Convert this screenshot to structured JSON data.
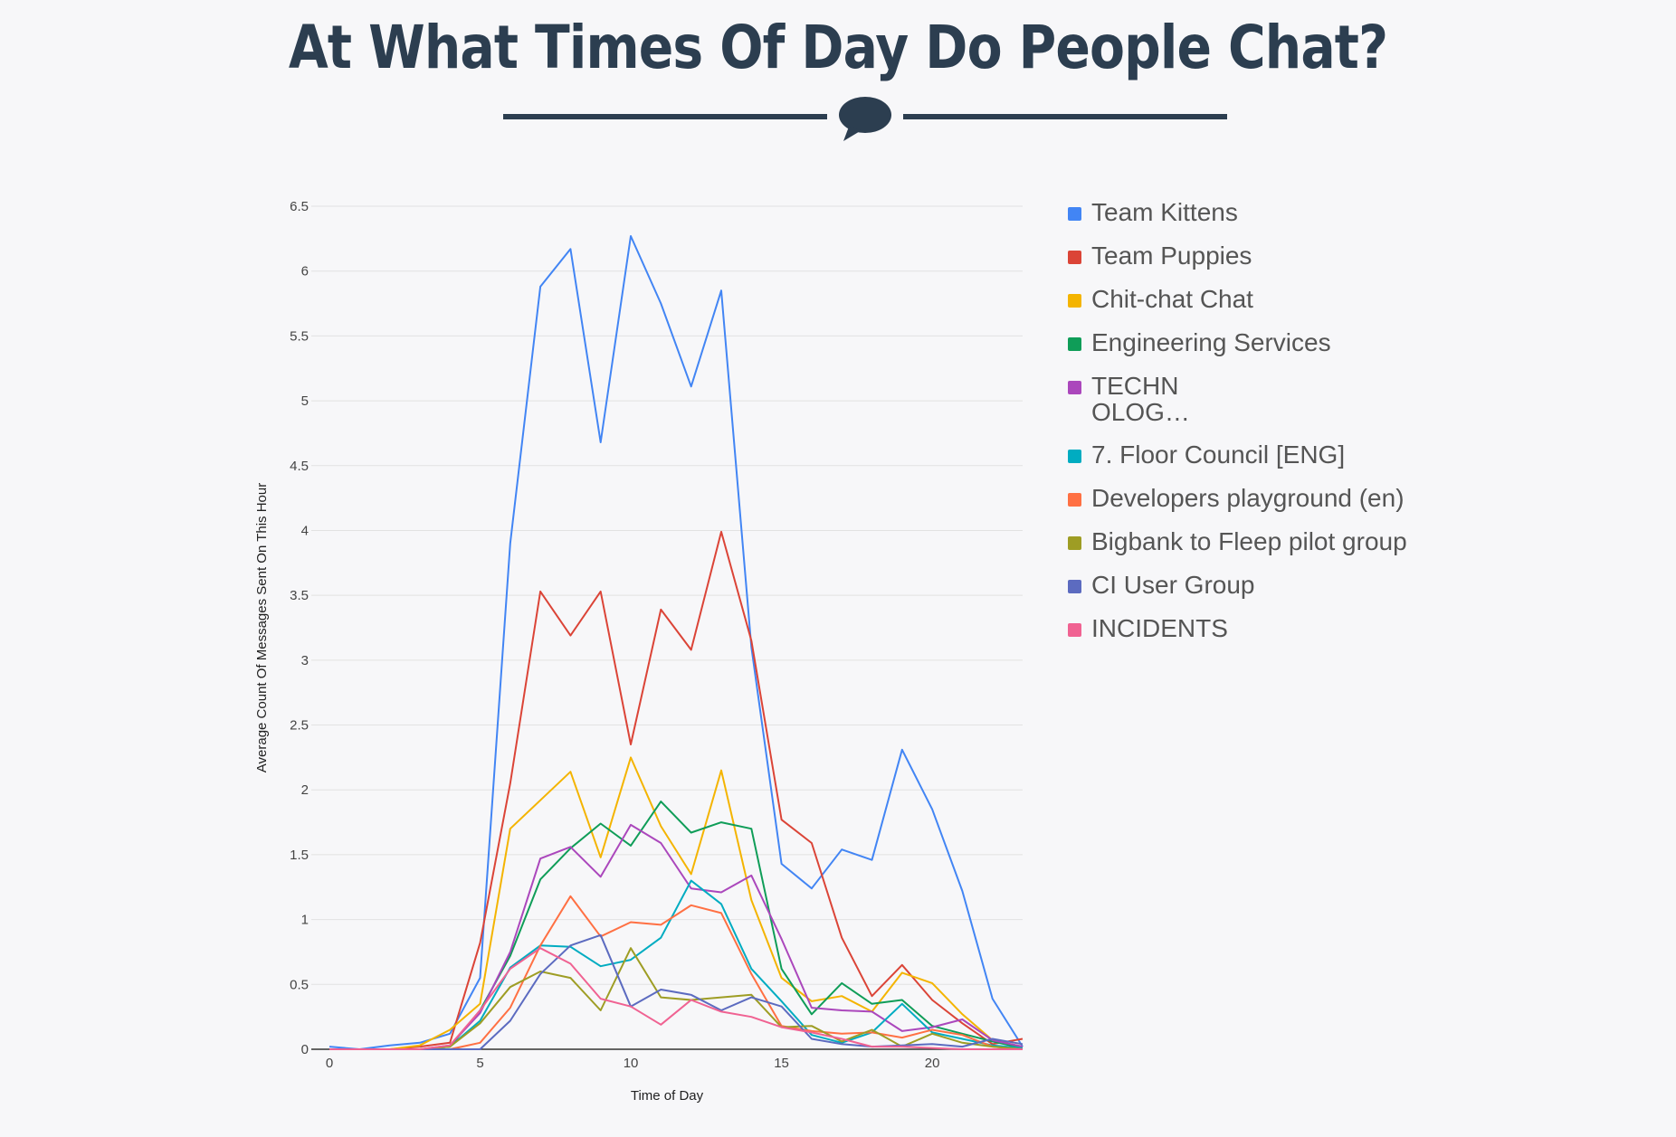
{
  "page": {
    "title": "At What Times Of Day Do People Chat?"
  },
  "chart_data": {
    "type": "line",
    "xlabel": "Time of Day",
    "ylabel": "Average Count Of Messages Sent On This Hour",
    "xlim": [
      0,
      23
    ],
    "ylim": [
      0,
      6.5
    ],
    "x_ticks": [
      0,
      5,
      10,
      15,
      20
    ],
    "y_ticks": [
      0,
      0.5,
      1,
      1.5,
      2,
      2.5,
      3,
      3.5,
      4,
      4.5,
      5,
      5.5,
      6,
      6.5
    ],
    "grid": true,
    "legend_position": "right",
    "x": [
      0,
      1,
      2,
      3,
      4,
      5,
      6,
      7,
      8,
      9,
      10,
      11,
      12,
      13,
      14,
      15,
      16,
      17,
      18,
      19,
      20,
      21,
      22,
      23
    ],
    "series": [
      {
        "name": "Team Kittens",
        "color": "#4285f4",
        "values": [
          0.02,
          0.0,
          0.03,
          0.05,
          0.12,
          0.55,
          3.9,
          5.88,
          6.17,
          4.68,
          6.27,
          5.75,
          5.11,
          5.85,
          3.1,
          1.43,
          1.24,
          1.54,
          1.46,
          2.31,
          1.85,
          1.22,
          0.39,
          0.02
        ]
      },
      {
        "name": "Team Puppies",
        "color": "#db4437",
        "values": [
          0.0,
          0.0,
          0.0,
          0.02,
          0.05,
          0.82,
          2.05,
          3.53,
          3.19,
          3.53,
          2.35,
          3.39,
          3.08,
          3.99,
          3.15,
          1.77,
          1.59,
          0.86,
          0.41,
          0.65,
          0.38,
          0.2,
          0.04,
          0.08
        ]
      },
      {
        "name": "Chit-chat Chat",
        "color": "#f4b400",
        "values": [
          0.0,
          0.0,
          0.0,
          0.03,
          0.15,
          0.35,
          1.7,
          1.92,
          2.14,
          1.48,
          2.25,
          1.72,
          1.35,
          2.15,
          1.15,
          0.55,
          0.37,
          0.41,
          0.29,
          0.59,
          0.51,
          0.27,
          0.07,
          0.02
        ]
      },
      {
        "name": "Engineering Services",
        "color": "#0f9d58",
        "values": [
          0.0,
          0.0,
          0.0,
          0.0,
          0.02,
          0.3,
          0.72,
          1.31,
          1.55,
          1.74,
          1.57,
          1.91,
          1.67,
          1.75,
          1.7,
          0.62,
          0.27,
          0.51,
          0.35,
          0.38,
          0.18,
          0.12,
          0.06,
          0.01
        ]
      },
      {
        "name": "TECHNOLOG…",
        "color": "#ab47bc",
        "values": [
          0.0,
          0.0,
          0.0,
          0.0,
          0.03,
          0.28,
          0.75,
          1.47,
          1.56,
          1.33,
          1.73,
          1.59,
          1.24,
          1.21,
          1.34,
          0.85,
          0.32,
          0.3,
          0.29,
          0.14,
          0.17,
          0.23,
          0.07,
          0.02
        ]
      },
      {
        "name": "7. Floor Council [ENG]",
        "color": "#00acc1",
        "values": [
          0.0,
          0.0,
          0.0,
          0.0,
          0.02,
          0.22,
          0.63,
          0.8,
          0.79,
          0.64,
          0.69,
          0.86,
          1.3,
          1.12,
          0.62,
          0.37,
          0.11,
          0.05,
          0.13,
          0.35,
          0.13,
          0.08,
          0.03,
          0.01
        ]
      },
      {
        "name": "Developers playground (en)",
        "color": "#ff7043",
        "values": [
          0.0,
          0.0,
          0.0,
          0.0,
          0.0,
          0.05,
          0.32,
          0.8,
          1.18,
          0.87,
          0.98,
          0.96,
          1.11,
          1.05,
          0.58,
          0.18,
          0.14,
          0.12,
          0.13,
          0.09,
          0.15,
          0.11,
          0.02,
          0.0
        ]
      },
      {
        "name": "Bigbank to Fleep pilot group",
        "color": "#9e9d24",
        "values": [
          0.0,
          0.0,
          0.0,
          0.0,
          0.02,
          0.2,
          0.48,
          0.6,
          0.55,
          0.3,
          0.78,
          0.4,
          0.38,
          0.4,
          0.42,
          0.17,
          0.18,
          0.06,
          0.15,
          0.02,
          0.12,
          0.05,
          0.02,
          0.0
        ]
      },
      {
        "name": "CI User Group",
        "color": "#5c6bc0",
        "values": [
          0.0,
          0.0,
          0.0,
          0.0,
          0.0,
          0.0,
          0.22,
          0.58,
          0.8,
          0.88,
          0.33,
          0.46,
          0.42,
          0.3,
          0.4,
          0.33,
          0.08,
          0.04,
          0.02,
          0.03,
          0.04,
          0.02,
          0.08,
          0.04
        ]
      },
      {
        "name": "INCIDENTS",
        "color": "#f06292",
        "values": [
          0.0,
          0.0,
          0.0,
          0.0,
          0.03,
          0.3,
          0.62,
          0.78,
          0.66,
          0.39,
          0.33,
          0.19,
          0.38,
          0.29,
          0.25,
          0.17,
          0.13,
          0.08,
          0.02,
          0.02,
          0.01,
          0.0,
          0.0,
          0.0
        ]
      }
    ]
  }
}
